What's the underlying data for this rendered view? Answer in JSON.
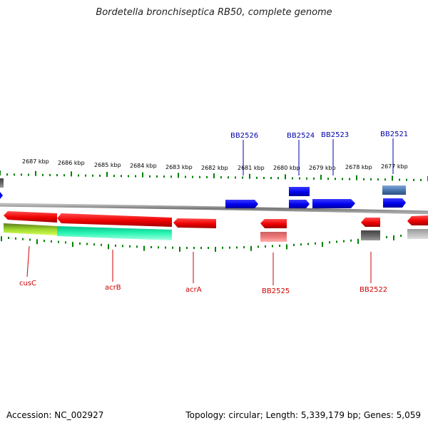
{
  "title": "Bordetella bronchiseptica RB50, complete genome",
  "footer": {
    "accession": "Accession: NC_002927",
    "topology": "Topology: circular; Length: 5,339,179 bp; Genes: 5,059"
  },
  "colors": {
    "forward_gene": "#0000ee",
    "reverse_gene": "#ee0000",
    "forward_label": "#0000aa",
    "reverse_label": "#cc0000",
    "ticks": "#008000",
    "backbone": "#888888"
  },
  "scale_labels": [
    "2687 kbp",
    "2686 kbp",
    "2685 kbp",
    "2684 kbp",
    "2683 kbp",
    "2682 kbp",
    "2681 kbp",
    "2680 kbp",
    "2679 kbp",
    "2678 kbp",
    "2677 kbp"
  ],
  "top_gene_labels": [
    "BB2526",
    "BB2524",
    "BB2523",
    "BB2521"
  ],
  "bottom_gene_labels": [
    "cusC",
    "acrB",
    "acrA",
    "BB2525",
    "BB2522"
  ]
}
